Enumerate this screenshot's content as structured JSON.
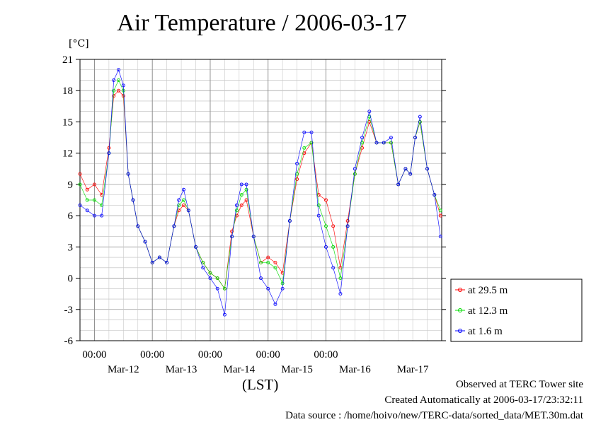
{
  "title": "Air Temperature / 2006-03-17",
  "unit": "[°C]",
  "xlabel": "(LST)",
  "footer": {
    "line1": "Observed at TERC Tower site",
    "line2": "Created Automatically at 2006-03-17/23:32:11",
    "line3": "Data source : /home/hoivo/new/TERC-data/sorted_data/MET.30m.dat"
  },
  "chart_data": {
    "type": "line",
    "title": "Air Temperature / 2006-03-17",
    "ylabel": "[°C]",
    "xlabel": "(LST)",
    "xlim": [
      "2006-03-11 18:00",
      "2006-03-18 00:00"
    ],
    "ylim": [
      -6,
      21
    ],
    "yticks": [
      -6,
      -3,
      0,
      3,
      6,
      9,
      12,
      15,
      18,
      21
    ],
    "ytick_labels": [
      "-6",
      "-3",
      "0",
      "3",
      "6",
      "9",
      "12",
      "15",
      "18",
      "21"
    ],
    "xticks_time": [
      "2006-03-12 00:00",
      "2006-03-13 00:00",
      "2006-03-14 00:00",
      "2006-03-15 00:00",
      "2006-03-16 00:00"
    ],
    "xtick_time_labels": [
      "00:00",
      "00:00",
      "00:00",
      "00:00",
      "00:00"
    ],
    "date_labels": [
      "Mar-12",
      "Mar-13",
      "Mar-14",
      "Mar-15",
      "Mar-16",
      "Mar-17"
    ],
    "grid": true,
    "legend_position": "right",
    "series": [
      {
        "name": "at 29.5 m",
        "color": "#ff0000",
        "x": [
          "2006-03-11 18:00",
          "2006-03-11 21:00",
          "2006-03-12 00:00",
          "2006-03-12 03:00",
          "2006-03-12 06:00",
          "2006-03-12 08:00",
          "2006-03-12 10:00",
          "2006-03-12 12:00",
          "2006-03-12 14:00",
          "2006-03-12 16:00",
          "2006-03-12 18:00",
          "2006-03-12 21:00",
          "2006-03-13 00:00",
          "2006-03-13 03:00",
          "2006-03-13 06:00",
          "2006-03-13 09:00",
          "2006-03-13 11:00",
          "2006-03-13 13:00",
          "2006-03-13 15:00",
          "2006-03-13 18:00",
          "2006-03-13 21:00",
          "2006-03-14 00:00",
          "2006-03-14 03:00",
          "2006-03-14 06:00",
          "2006-03-14 09:00",
          "2006-03-14 11:00",
          "2006-03-14 13:00",
          "2006-03-14 15:00",
          "2006-03-14 18:00",
          "2006-03-14 21:00",
          "2006-03-15 00:00",
          "2006-03-15 03:00",
          "2006-03-15 06:00",
          "2006-03-15 09:00",
          "2006-03-15 12:00",
          "2006-03-15 15:00",
          "2006-03-15 18:00",
          "2006-03-15 21:00",
          "2006-03-16 00:00",
          "2006-03-16 03:00",
          "2006-03-16 06:00",
          "2006-03-16 09:00",
          "2006-03-16 12:00",
          "2006-03-16 15:00",
          "2006-03-16 18:00",
          "2006-03-16 21:00",
          "2006-03-17 00:00",
          "2006-03-17 03:00",
          "2006-03-17 06:00",
          "2006-03-17 09:00",
          "2006-03-17 11:00",
          "2006-03-17 13:00",
          "2006-03-17 15:00",
          "2006-03-17 18:00",
          "2006-03-17 21:00",
          "2006-03-17 23:30"
        ],
        "y": [
          10.0,
          8.5,
          9.0,
          8.0,
          12.5,
          17.5,
          18.0,
          17.5,
          10.0,
          7.5,
          5.0,
          3.5,
          1.5,
          2.0,
          1.5,
          5.0,
          6.5,
          7.0,
          6.5,
          3.0,
          1.5,
          0.5,
          0.0,
          -1.0,
          4.5,
          6.0,
          7.0,
          7.5,
          4.0,
          1.5,
          2.0,
          1.5,
          0.5,
          5.5,
          9.5,
          12.0,
          13.0,
          8.0,
          7.5,
          5.0,
          1.0,
          5.5,
          10.0,
          12.5,
          15.0,
          13.0,
          13.0,
          13.0,
          9.0,
          10.5,
          10.0,
          13.5,
          15.0,
          10.5,
          8.0,
          6.0
        ]
      },
      {
        "name": "at 12.3 m",
        "color": "#00dd00",
        "x": [
          "2006-03-11 18:00",
          "2006-03-11 21:00",
          "2006-03-12 00:00",
          "2006-03-12 03:00",
          "2006-03-12 06:00",
          "2006-03-12 08:00",
          "2006-03-12 10:00",
          "2006-03-12 12:00",
          "2006-03-12 14:00",
          "2006-03-12 16:00",
          "2006-03-12 18:00",
          "2006-03-12 21:00",
          "2006-03-13 00:00",
          "2006-03-13 03:00",
          "2006-03-13 06:00",
          "2006-03-13 09:00",
          "2006-03-13 11:00",
          "2006-03-13 13:00",
          "2006-03-13 15:00",
          "2006-03-13 18:00",
          "2006-03-13 21:00",
          "2006-03-14 00:00",
          "2006-03-14 03:00",
          "2006-03-14 06:00",
          "2006-03-14 09:00",
          "2006-03-14 11:00",
          "2006-03-14 13:00",
          "2006-03-14 15:00",
          "2006-03-14 18:00",
          "2006-03-14 21:00",
          "2006-03-15 00:00",
          "2006-03-15 03:00",
          "2006-03-15 06:00",
          "2006-03-15 09:00",
          "2006-03-15 12:00",
          "2006-03-15 15:00",
          "2006-03-15 18:00",
          "2006-03-15 21:00",
          "2006-03-16 00:00",
          "2006-03-16 03:00",
          "2006-03-16 06:00",
          "2006-03-16 09:00",
          "2006-03-16 12:00",
          "2006-03-16 15:00",
          "2006-03-16 18:00",
          "2006-03-16 21:00",
          "2006-03-17 00:00",
          "2006-03-17 03:00",
          "2006-03-17 06:00",
          "2006-03-17 09:00",
          "2006-03-17 11:00",
          "2006-03-17 13:00",
          "2006-03-17 15:00",
          "2006-03-17 18:00",
          "2006-03-17 21:00",
          "2006-03-17 23:30"
        ],
        "y": [
          9.0,
          7.5,
          7.5,
          7.0,
          12.0,
          18.0,
          19.0,
          18.0,
          10.0,
          7.5,
          5.0,
          3.5,
          1.5,
          2.0,
          1.5,
          5.0,
          7.0,
          7.5,
          6.5,
          3.0,
          1.5,
          0.5,
          0.0,
          -1.0,
          4.0,
          6.5,
          8.0,
          8.5,
          4.0,
          1.5,
          1.5,
          1.0,
          -0.5,
          5.5,
          10.0,
          12.5,
          13.0,
          7.0,
          5.0,
          3.0,
          0.0,
          5.0,
          10.0,
          13.0,
          15.5,
          13.0,
          13.0,
          13.0,
          9.0,
          10.5,
          10.0,
          13.5,
          15.0,
          10.5,
          8.0,
          6.5
        ]
      },
      {
        "name": "at 1.6 m",
        "color": "#0000ff",
        "x": [
          "2006-03-11 18:00",
          "2006-03-11 21:00",
          "2006-03-12 00:00",
          "2006-03-12 03:00",
          "2006-03-12 06:00",
          "2006-03-12 08:00",
          "2006-03-12 10:00",
          "2006-03-12 12:00",
          "2006-03-12 14:00",
          "2006-03-12 16:00",
          "2006-03-12 18:00",
          "2006-03-12 21:00",
          "2006-03-13 00:00",
          "2006-03-13 03:00",
          "2006-03-13 06:00",
          "2006-03-13 09:00",
          "2006-03-13 11:00",
          "2006-03-13 13:00",
          "2006-03-13 15:00",
          "2006-03-13 18:00",
          "2006-03-13 21:00",
          "2006-03-14 00:00",
          "2006-03-14 03:00",
          "2006-03-14 06:00",
          "2006-03-14 09:00",
          "2006-03-14 11:00",
          "2006-03-14 13:00",
          "2006-03-14 15:00",
          "2006-03-14 18:00",
          "2006-03-14 21:00",
          "2006-03-15 00:00",
          "2006-03-15 03:00",
          "2006-03-15 06:00",
          "2006-03-15 09:00",
          "2006-03-15 12:00",
          "2006-03-15 15:00",
          "2006-03-15 18:00",
          "2006-03-15 21:00",
          "2006-03-16 00:00",
          "2006-03-16 03:00",
          "2006-03-16 06:00",
          "2006-03-16 09:00",
          "2006-03-16 12:00",
          "2006-03-16 15:00",
          "2006-03-16 18:00",
          "2006-03-16 21:00",
          "2006-03-17 00:00",
          "2006-03-17 03:00",
          "2006-03-17 06:00",
          "2006-03-17 09:00",
          "2006-03-17 11:00",
          "2006-03-17 13:00",
          "2006-03-17 15:00",
          "2006-03-17 18:00",
          "2006-03-17 21:00",
          "2006-03-17 23:30"
        ],
        "y": [
          7.0,
          6.5,
          6.0,
          6.0,
          12.0,
          19.0,
          20.0,
          18.5,
          10.0,
          7.5,
          5.0,
          3.5,
          1.5,
          2.0,
          1.5,
          5.0,
          7.5,
          8.5,
          6.5,
          3.0,
          1.0,
          0.0,
          -1.0,
          -3.5,
          4.0,
          7.0,
          9.0,
          9.0,
          4.0,
          0.0,
          -1.0,
          -2.5,
          -1.0,
          5.5,
          11.0,
          14.0,
          14.0,
          6.0,
          3.0,
          1.0,
          -1.5,
          5.0,
          10.5,
          13.5,
          16.0,
          13.0,
          13.0,
          13.5,
          9.0,
          10.5,
          10.0,
          13.5,
          15.5,
          10.5,
          8.0,
          4.0
        ]
      }
    ]
  }
}
